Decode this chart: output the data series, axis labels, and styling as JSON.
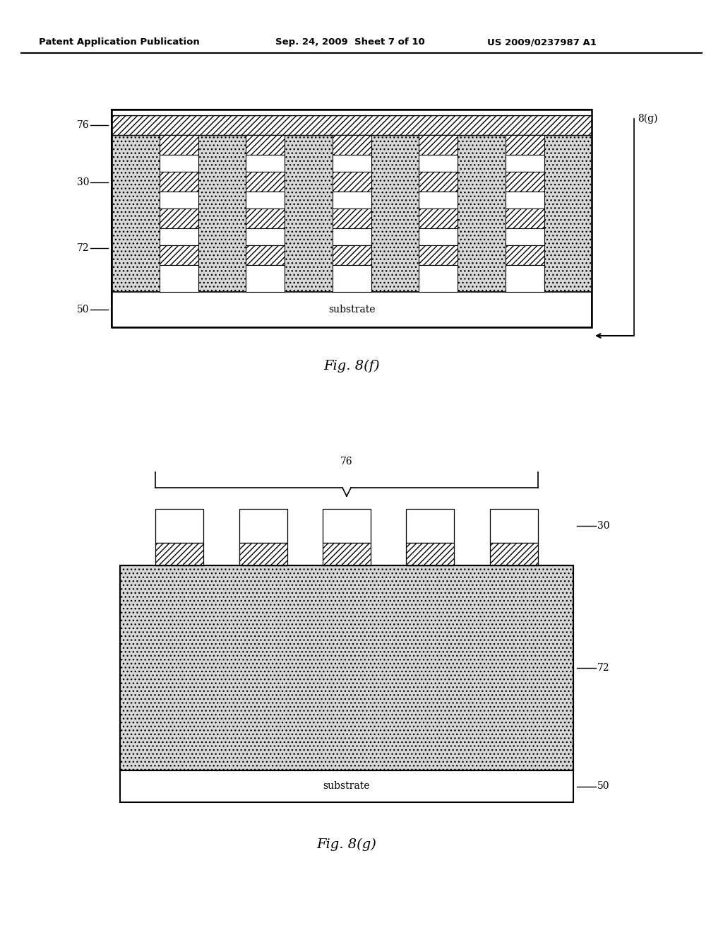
{
  "bg_color": "#ffffff",
  "header_left": "Patent Application Publication",
  "header_center": "Sep. 24, 2009  Sheet 7 of 10",
  "header_right": "US 2009/0237987 A1",
  "fig8f_caption": "Fig. 8(f)",
  "fig8g_caption": "Fig. 8(g)",
  "label_76_f": "76",
  "label_30_f": "30",
  "label_72_f": "72",
  "label_50_f": "50",
  "label_8g_arrow": "8(g)",
  "label_76_g": "76",
  "label_30_g": "30",
  "label_72_g": "72",
  "label_50_g": "50",
  "substrate_text": "substrate",
  "dot_color": "#d8d8d8",
  "black_color": "#000000"
}
